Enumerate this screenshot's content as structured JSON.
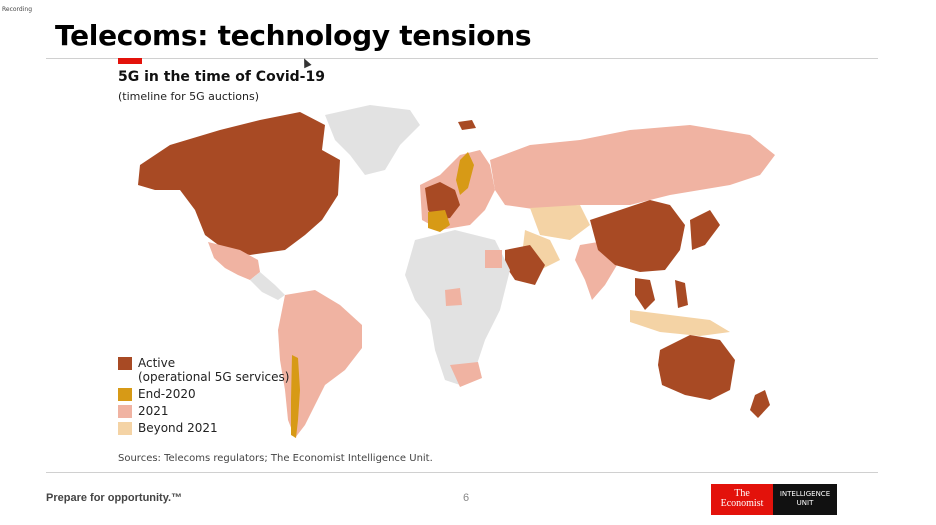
{
  "recording_label": "Recording",
  "slide": {
    "title": "Telecoms: technology tensions",
    "page_number": "6",
    "tagline": "Prepare for opportunity.™"
  },
  "chart": {
    "title": "5G in the time of Covid-19",
    "subtitle": "(timeline for 5G auctions)",
    "sources": "Sources: Telecoms regulators; The Economist Intelligence Unit."
  },
  "legend": [
    {
      "label": "Active",
      "sublabel": "(operational 5G services)",
      "color": "#a84a24"
    },
    {
      "label": "End-2020",
      "sublabel": "",
      "color": "#d79a16"
    },
    {
      "label": "2021",
      "sublabel": "",
      "color": "#f0b3a2"
    },
    {
      "label": "Beyond 2021",
      "sublabel": "",
      "color": "#f4d3a5"
    }
  ],
  "colors": {
    "active": "#a84a24",
    "end2020": "#d79a16",
    "y2021": "#f0b3a2",
    "beyond": "#f4d3a5",
    "none": "#e2e2e2"
  },
  "logo": {
    "line1": "The",
    "line2": "Economist",
    "line3": "INTELLIGENCE",
    "line4": "UNIT"
  }
}
